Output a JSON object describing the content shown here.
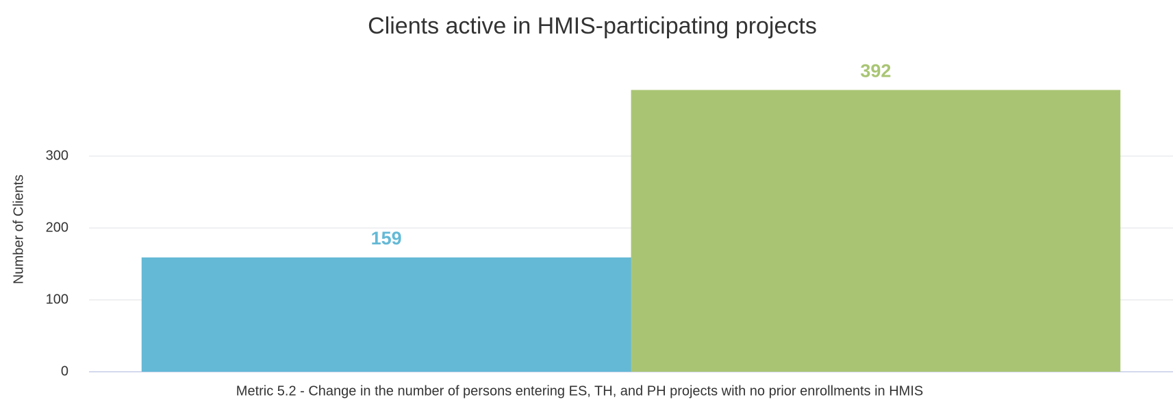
{
  "chart_data": {
    "type": "bar",
    "title": "Clients active in HMIS-participating projects",
    "y_label": "Number of Clients",
    "categories": [
      "Metric 5.2 - Change in the number of persons entering ES, TH, and PH projects with no prior enrollments in HMIS"
    ],
    "series": [
      {
        "color": "#63b9d6",
        "values": [
          159
        ]
      },
      {
        "color": "#a9c574",
        "values": [
          392
        ]
      }
    ],
    "ylim": [
      0,
      420
    ],
    "yticks": [
      0,
      100,
      200,
      300
    ],
    "grid": true
  }
}
